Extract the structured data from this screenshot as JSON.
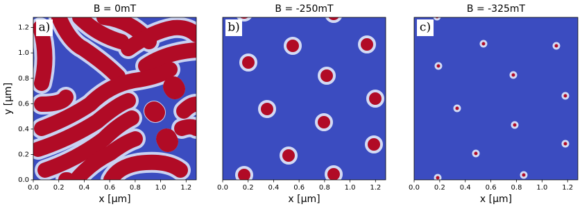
{
  "chart_data": [
    {
      "type": "image",
      "title": "B = 0mT",
      "panel_label": "a)",
      "xlabel": "x [µm]",
      "ylabel": "y [µm]",
      "xlim": [
        0,
        1.28
      ],
      "ylim": [
        0,
        1.28
      ],
      "xticks": [
        {
          "value": 0,
          "label": "0.0"
        },
        0.2,
        0.4,
        0.6,
        0.8,
        {
          "value": 1,
          "label": "1.0"
        },
        1.2
      ],
      "yticks": [
        {
          "value": 0,
          "label": "0.0"
        },
        0.2,
        0.4,
        0.6,
        0.8,
        {
          "value": 1,
          "label": "1.0"
        },
        1.2
      ]
    },
    {
      "type": "image",
      "title": "B = -250mT",
      "panel_label": "b)",
      "xlabel": "x [µm]",
      "xlim": [
        0,
        1.28
      ],
      "xticks": [
        {
          "value": 0,
          "label": "0.0"
        },
        0.2,
        0.4,
        0.6,
        0.8,
        {
          "value": 1,
          "label": "1.0"
        },
        1.2
      ]
    },
    {
      "type": "image",
      "title": "B = -325mT",
      "panel_label": "c)",
      "xlabel": "x [µm]",
      "xlim": [
        0,
        1.28
      ],
      "xticks": [
        {
          "value": 0,
          "label": "0.0"
        },
        0.2,
        0.4,
        0.6,
        0.8,
        {
          "value": 1,
          "label": "1.0"
        },
        1.2
      ]
    }
  ]
}
